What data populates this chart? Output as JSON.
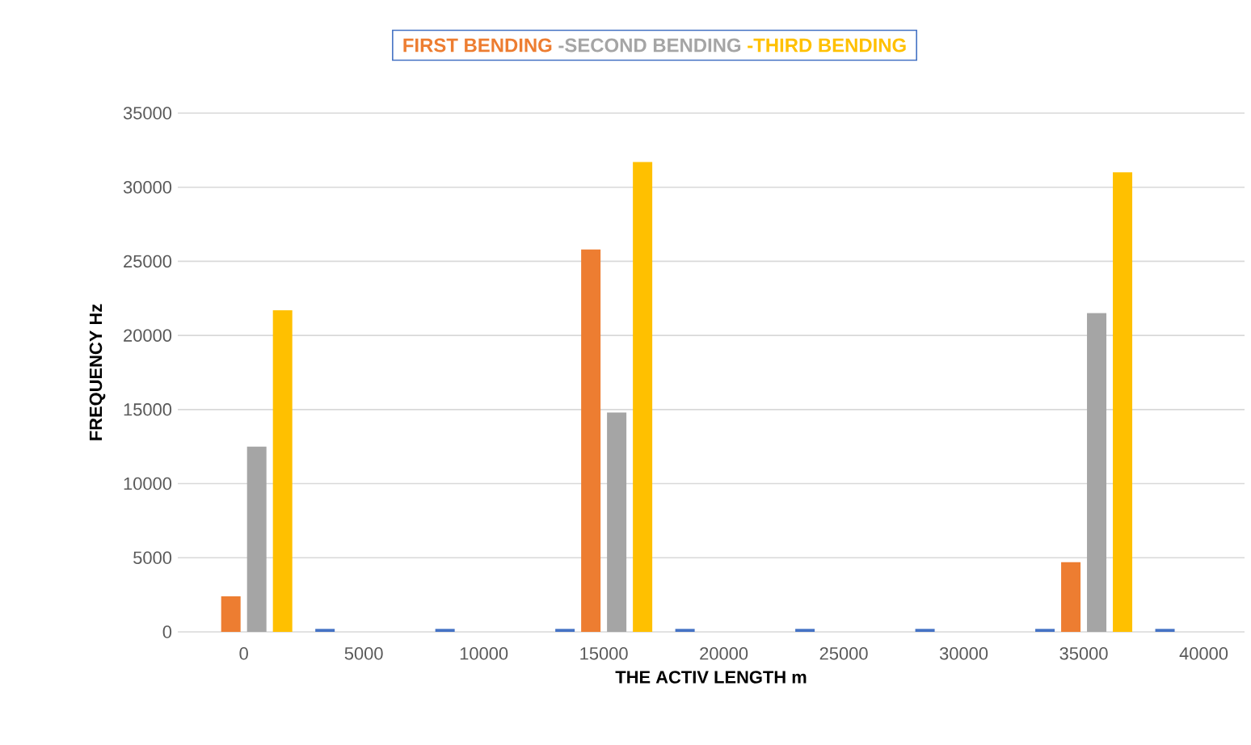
{
  "chart_data": {
    "type": "bar",
    "xlabel": "THE ACTIV LENGTH m",
    "ylabel": "FREQUENCY Hz",
    "categories": [
      "0",
      "5000",
      "10000",
      "15000",
      "20000",
      "25000",
      "30000",
      "35000",
      "40000"
    ],
    "ylim": [
      0,
      35000
    ],
    "yticks": [
      0,
      5000,
      10000,
      15000,
      20000,
      25000,
      30000,
      35000
    ],
    "grid": "y",
    "legend": "top",
    "series": [
      {
        "color": "#4472c4",
        "values": [
          null,
          200,
          200,
          200,
          200,
          200,
          200,
          200,
          200
        ]
      },
      {
        "name": "FIRST BENDING",
        "color": "#ed7d31",
        "values": [
          2400,
          null,
          null,
          25800,
          null,
          null,
          null,
          4700,
          null
        ]
      },
      {
        "name": "-SECOND BENDING",
        "color": "#a5a5a5",
        "values": [
          12500,
          null,
          null,
          14800,
          null,
          null,
          null,
          21500,
          null
        ]
      },
      {
        "name": "-THIRD BENDING",
        "color": "#ffc000",
        "values": [
          21700,
          null,
          null,
          31700,
          null,
          null,
          null,
          31000,
          null
        ]
      }
    ]
  }
}
